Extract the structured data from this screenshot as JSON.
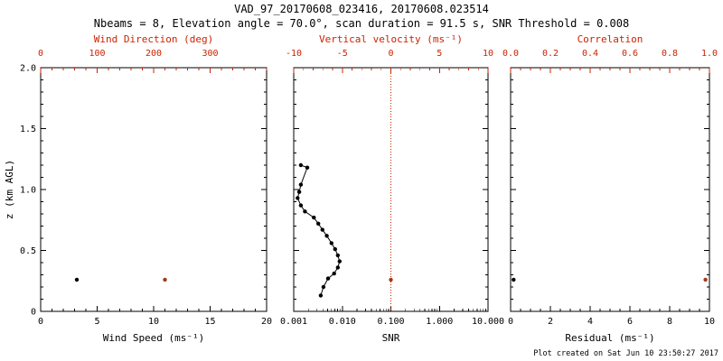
{
  "header": {
    "title": "VAD_97_20170608_023416, 20170608.023514",
    "subtitle": "Nbeams = 8, Elevation angle = 70.0°, scan duration = 91.5 s, SNR Threshold = 0.008"
  },
  "footer": {
    "created": "Plot created on Sat Jun 10 23:50:27 2017"
  },
  "colors": {
    "primary": "#000000",
    "secondary": "#cc2200",
    "secondary_point": "#a03a1e",
    "background": "#ffffff"
  },
  "ylabel": "z (km AGL)",
  "chart_data": [
    {
      "type": "scatter",
      "name": "wind-speed-direction",
      "xlabel": "Wind Speed (ms⁻¹)",
      "xscale": "linear",
      "xlim": [
        0,
        20
      ],
      "xticks": [
        0,
        5,
        10,
        15,
        20
      ],
      "xtick_labels": [
        "0",
        "5",
        "10",
        "15",
        "20"
      ],
      "xminor": 5,
      "ylim": [
        0,
        2
      ],
      "yticks": [
        0,
        0.5,
        1,
        1.5,
        2
      ],
      "ytick_labels": [
        "0",
        "0.5",
        "1.0",
        "1.5",
        "2.0"
      ],
      "yminor": 5,
      "show_ytick_labels": true,
      "top_axis": {
        "label": "Wind Direction (deg)",
        "lim": [
          0,
          400
        ],
        "ticks": [
          0,
          100,
          200,
          300
        ],
        "tick_labels": [
          "0",
          "100",
          "200",
          "300"
        ],
        "minor": 5
      },
      "series": [
        {
          "name": "wind-speed",
          "axis": "bottom",
          "color": "#000000",
          "marker": true,
          "line": false,
          "points": [
            [
              3.2,
              0.26
            ]
          ]
        },
        {
          "name": "wind-direction",
          "axis": "top",
          "color": "#a03a1e",
          "marker": true,
          "line": false,
          "points": [
            [
              220,
              0.26
            ]
          ]
        }
      ]
    },
    {
      "type": "line-scatter",
      "name": "snr-vertical-velocity",
      "xlabel": "SNR",
      "xscale": "log",
      "xlim": [
        0.001,
        10
      ],
      "xticks": [
        0.001,
        0.01,
        0.1,
        1,
        10
      ],
      "xtick_labels": [
        "0.001",
        "0.010",
        "0.100",
        "1.000",
        "10.000"
      ],
      "ylim": [
        0,
        2
      ],
      "yticks": [
        0,
        0.5,
        1,
        1.5,
        2
      ],
      "ytick_labels": [
        "0",
        "0.5",
        "1.0",
        "1.5",
        "2.0"
      ],
      "yminor": 5,
      "show_ytick_labels": false,
      "top_axis": {
        "label": "Vertical velocity (ms⁻¹)",
        "lim": [
          -10,
          10
        ],
        "ticks": [
          -10,
          -5,
          0,
          5,
          10
        ],
        "tick_labels": [
          "-10",
          "-5",
          "0",
          "5",
          "10"
        ],
        "minor": 5
      },
      "ref_line": {
        "axis": "top",
        "value": 0,
        "color": "#cc2200",
        "style": "dotted"
      },
      "series": [
        {
          "name": "snr-profile",
          "axis": "bottom",
          "color": "#000000",
          "marker": true,
          "line": true,
          "points": [
            [
              0.0036,
              0.13
            ],
            [
              0.0041,
              0.2
            ],
            [
              0.0051,
              0.27
            ],
            [
              0.0068,
              0.31
            ],
            [
              0.0081,
              0.36
            ],
            [
              0.0088,
              0.41
            ],
            [
              0.0081,
              0.46
            ],
            [
              0.0071,
              0.51
            ],
            [
              0.006,
              0.56
            ],
            [
              0.0048,
              0.62
            ],
            [
              0.0039,
              0.67
            ],
            [
              0.0032,
              0.72
            ],
            [
              0.0026,
              0.77
            ],
            [
              0.0017,
              0.82
            ],
            [
              0.0014,
              0.87
            ],
            [
              0.0012,
              0.93
            ],
            [
              0.0013,
              0.98
            ],
            [
              0.0014,
              1.04
            ],
            [
              0.0019,
              1.18
            ],
            [
              0.0014,
              1.2
            ]
          ]
        },
        {
          "name": "vertical-velocity",
          "axis": "top",
          "color": "#a03a1e",
          "marker": true,
          "line": false,
          "points": [
            [
              0.0,
              0.26
            ]
          ]
        }
      ]
    },
    {
      "type": "scatter",
      "name": "residual-correlation",
      "xlabel": "Residual (ms⁻¹)",
      "xscale": "linear",
      "xlim": [
        0,
        10
      ],
      "xticks": [
        0,
        2,
        4,
        6,
        8,
        10
      ],
      "xtick_labels": [
        "0",
        "2",
        "4",
        "6",
        "8",
        "10"
      ],
      "xminor": 4,
      "ylim": [
        0,
        2
      ],
      "yticks": [
        0,
        0.5,
        1,
        1.5,
        2
      ],
      "ytick_labels": [
        "0",
        "0.5",
        "1.0",
        "1.5",
        "2.0"
      ],
      "yminor": 5,
      "show_ytick_labels": false,
      "top_axis": {
        "label": "Correlation",
        "lim": [
          0,
          1
        ],
        "ticks": [
          0,
          0.2,
          0.4,
          0.6,
          0.8,
          1.0
        ],
        "tick_labels": [
          "0.0",
          "0.2",
          "0.4",
          "0.6",
          "0.8",
          "1.0"
        ],
        "minor": 4
      },
      "series": [
        {
          "name": "residual",
          "axis": "bottom",
          "color": "#000000",
          "marker": true,
          "line": false,
          "points": [
            [
              0.15,
              0.26
            ]
          ]
        },
        {
          "name": "correlation",
          "axis": "top",
          "color": "#a03a1e",
          "marker": true,
          "line": false,
          "points": [
            [
              0.98,
              0.26
            ]
          ]
        }
      ]
    }
  ]
}
